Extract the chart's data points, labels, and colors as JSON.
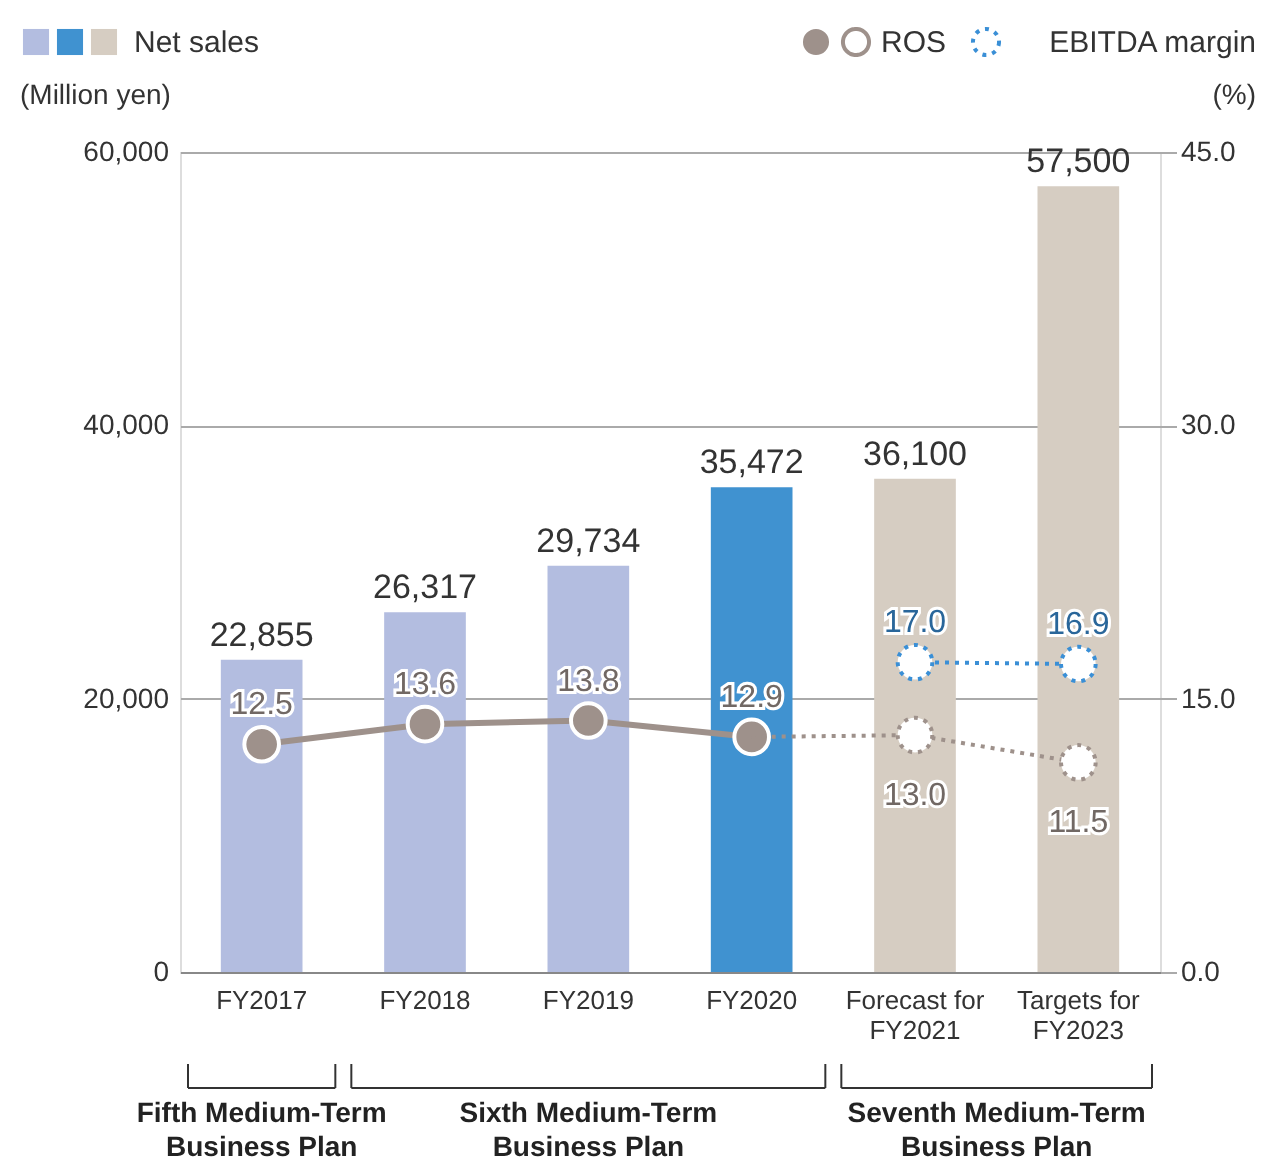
{
  "chart_data": {
    "type": "bar",
    "categories": [
      "FY2017",
      "FY2018",
      "FY2019",
      "FY2020",
      "Forecast for FY2021",
      "Targets for FY2023"
    ],
    "ylabel": "(Million yen)",
    "y2label": "(%)",
    "ylim": [
      0,
      60000
    ],
    "yticks": [
      {
        "value": 0,
        "label": "0"
      },
      {
        "value": 20000,
        "label": "20,000"
      },
      {
        "value": 40000,
        "label": "40,000"
      },
      {
        "value": 60000,
        "label": "60,000"
      }
    ],
    "y2lim": [
      0,
      45
    ],
    "y2ticks": [
      {
        "value": 0,
        "label": "0.0"
      },
      {
        "value": 15,
        "label": "15.0"
      },
      {
        "value": 30,
        "label": "30.0"
      },
      {
        "value": 45,
        "label": "45.0"
      }
    ],
    "grid": "y",
    "legend": "top",
    "series": [
      {
        "name": "Net sales",
        "colors": [
          "#b3bde0",
          "#b3bde0",
          "#b3bde0",
          "#4092d0",
          "#d6cdc2",
          "#d6cdc2"
        ],
        "values": [
          22855,
          26317,
          29734,
          35472,
          36100,
          57500
        ],
        "value_labels": [
          "22,855",
          "26,317",
          "29,734",
          "35,472",
          "36,100",
          "57,500"
        ]
      },
      {
        "name": "ROS",
        "type": "line",
        "axis": "y2",
        "color": "#9e918b",
        "line_style": "solid",
        "marker": "circle",
        "values": [
          12.5,
          13.6,
          13.8,
          12.9,
          null,
          null
        ],
        "value_labels": [
          "12.5",
          "13.6",
          "13.8",
          "12.9",
          null,
          null
        ]
      },
      {
        "type": "line",
        "axis": "y2",
        "color": "#9e918b",
        "line_style": "dotted",
        "marker": "circle",
        "values": [
          null,
          null,
          null,
          12.9,
          13.0,
          11.5
        ],
        "value_labels": [
          null,
          null,
          null,
          null,
          "13.0",
          "11.5"
        ]
      },
      {
        "name": "EBITDA margin",
        "type": "line",
        "axis": "y2",
        "color": "#3a8fd6",
        "line_style": "dotted",
        "marker": "circle",
        "values": [
          null,
          null,
          null,
          null,
          17.0,
          16.9
        ],
        "value_labels": [
          null,
          null,
          null,
          null,
          "17.0",
          "16.9"
        ]
      }
    ],
    "annotations": [
      "Fifth Medium-Term Business Plan",
      "Sixth Medium-Term Business Plan",
      "Seventh Medium-Term Business Plan"
    ]
  }
}
